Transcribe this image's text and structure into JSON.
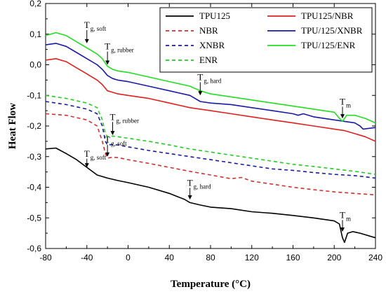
{
  "chart_data": {
    "type": "line",
    "xlabel": "Temperature (°C)",
    "ylabel": "Heat Flow",
    "xlim": [
      -80,
      240
    ],
    "ylim": [
      -0.6,
      0.2
    ],
    "x_ticks": [
      -80,
      -40,
      0,
      40,
      80,
      120,
      160,
      200,
      240
    ],
    "y_ticks": [
      0.2,
      0.1,
      0.0,
      -0.1,
      -0.2,
      -0.3,
      -0.4,
      -0.5,
      -0.6
    ],
    "y_tick_labels": [
      "0,2",
      "0,1",
      "0,0",
      "-0,1",
      "-0,2",
      "-0,3",
      "-0,4",
      "-0,5",
      "-0,6"
    ],
    "x_tick_labels": [
      "-80",
      "-40",
      "0",
      "40",
      "80",
      "120",
      "160",
      "200",
      "240"
    ],
    "grid": false,
    "legend": "top-right",
    "series": [
      {
        "name": "TPU125",
        "color": "#000000",
        "dash": "solid",
        "x": [
          -80,
          -70,
          -60,
          -50,
          -40,
          -30,
          -20,
          -10,
          0,
          20,
          40,
          55,
          60,
          70,
          80,
          100,
          120,
          140,
          160,
          180,
          200,
          205,
          208,
          210,
          213,
          218,
          225,
          240
        ],
        "y": [
          -0.275,
          -0.272,
          -0.29,
          -0.31,
          -0.335,
          -0.36,
          -0.37,
          -0.378,
          -0.385,
          -0.4,
          -0.42,
          -0.44,
          -0.45,
          -0.458,
          -0.465,
          -0.47,
          -0.48,
          -0.485,
          -0.492,
          -0.5,
          -0.51,
          -0.52,
          -0.565,
          -0.58,
          -0.55,
          -0.545,
          -0.55,
          -0.565
        ]
      },
      {
        "name": "NBR",
        "color": "#d03030",
        "dash": "dashed",
        "x": [
          -80,
          -60,
          -40,
          -30,
          -25,
          -22,
          -20,
          -15,
          -10,
          0,
          20,
          40,
          60,
          80,
          100,
          110,
          120,
          140,
          160,
          180,
          200,
          220,
          240
        ],
        "y": [
          -0.16,
          -0.165,
          -0.18,
          -0.2,
          -0.25,
          -0.29,
          -0.305,
          -0.302,
          -0.303,
          -0.31,
          -0.322,
          -0.335,
          -0.348,
          -0.36,
          -0.372,
          -0.368,
          -0.38,
          -0.39,
          -0.4,
          -0.408,
          -0.415,
          -0.42,
          -0.425
        ]
      },
      {
        "name": "XNBR",
        "color": "#1a1a9c",
        "dash": "dashed",
        "x": [
          -80,
          -60,
          -40,
          -30,
          -25,
          -22,
          -20,
          -15,
          -10,
          0,
          20,
          40,
          60,
          80,
          100,
          120,
          140,
          160,
          180,
          200,
          220,
          240
        ],
        "y": [
          -0.12,
          -0.13,
          -0.145,
          -0.16,
          -0.2,
          -0.25,
          -0.262,
          -0.26,
          -0.262,
          -0.268,
          -0.28,
          -0.29,
          -0.3,
          -0.31,
          -0.32,
          -0.33,
          -0.34,
          -0.345,
          -0.352,
          -0.358,
          -0.362,
          -0.37
        ]
      },
      {
        "name": "ENR",
        "color": "#22cc22",
        "dash": "dashed",
        "x": [
          -80,
          -60,
          -40,
          -30,
          -25,
          -22,
          -20,
          -15,
          -10,
          0,
          20,
          40,
          60,
          80,
          100,
          120,
          140,
          160,
          180,
          200,
          220,
          240
        ],
        "y": [
          -0.1,
          -0.11,
          -0.125,
          -0.14,
          -0.18,
          -0.225,
          -0.235,
          -0.233,
          -0.235,
          -0.24,
          -0.25,
          -0.262,
          -0.275,
          -0.285,
          -0.295,
          -0.305,
          -0.315,
          -0.325,
          -0.332,
          -0.34,
          -0.348,
          -0.358
        ]
      },
      {
        "name": "TPU125/NBR",
        "color": "#e02020",
        "dash": "solid",
        "x": [
          -80,
          -70,
          -60,
          -50,
          -40,
          -30,
          -25,
          -20,
          -15,
          -10,
          0,
          20,
          40,
          60,
          70,
          80,
          100,
          120,
          140,
          160,
          180,
          200,
          210,
          220,
          230,
          240
        ],
        "y": [
          0.015,
          0.02,
          0.01,
          -0.01,
          -0.03,
          -0.05,
          -0.065,
          -0.085,
          -0.09,
          -0.095,
          -0.1,
          -0.11,
          -0.125,
          -0.14,
          -0.145,
          -0.15,
          -0.16,
          -0.17,
          -0.18,
          -0.19,
          -0.2,
          -0.21,
          -0.215,
          -0.225,
          -0.235,
          -0.25
        ]
      },
      {
        "name": "TPU/125/XNBR",
        "color": "#1a1aa6",
        "dash": "solid",
        "x": [
          -80,
          -70,
          -60,
          -50,
          -40,
          -30,
          -25,
          -20,
          -15,
          -10,
          0,
          20,
          40,
          60,
          70,
          80,
          100,
          120,
          140,
          160,
          165,
          170,
          180,
          200,
          220,
          225,
          228,
          240
        ],
        "y": [
          0.065,
          0.07,
          0.06,
          0.04,
          0.02,
          0.0,
          -0.015,
          -0.035,
          -0.045,
          -0.05,
          -0.055,
          -0.07,
          -0.085,
          -0.1,
          -0.12,
          -0.125,
          -0.13,
          -0.14,
          -0.15,
          -0.16,
          -0.165,
          -0.16,
          -0.17,
          -0.18,
          -0.19,
          -0.2,
          -0.21,
          -0.205
        ]
      },
      {
        "name": "TPU/125/ENR",
        "color": "#22dd22",
        "dash": "solid",
        "x": [
          -80,
          -70,
          -60,
          -50,
          -40,
          -30,
          -25,
          -20,
          -15,
          -10,
          0,
          20,
          40,
          60,
          70,
          80,
          100,
          120,
          140,
          160,
          180,
          200,
          205,
          208,
          212,
          220,
          230,
          240
        ],
        "y": [
          0.095,
          0.105,
          0.095,
          0.075,
          0.055,
          0.035,
          0.02,
          -0.005,
          -0.015,
          -0.02,
          -0.025,
          -0.04,
          -0.055,
          -0.07,
          -0.085,
          -0.095,
          -0.105,
          -0.115,
          -0.125,
          -0.135,
          -0.145,
          -0.155,
          -0.175,
          -0.185,
          -0.165,
          -0.165,
          -0.175,
          -0.19
        ]
      }
    ],
    "annotations": [
      {
        "main": "T",
        "sub": "g, soft",
        "x": -40,
        "y": 0.12,
        "arrow_to": 0.07
      },
      {
        "main": "T",
        "sub": "g, rubber",
        "x": -20,
        "y": 0.05,
        "arrow_to": 0.0
      },
      {
        "main": "T",
        "sub": "g, hard",
        "x": 70,
        "y": -0.05,
        "arrow_to": -0.1
      },
      {
        "main": "T",
        "sub": "m",
        "x": 208,
        "y": -0.13,
        "arrow_to": -0.175
      },
      {
        "main": "T",
        "sub": "g, rubber",
        "x": -15,
        "y": -0.18,
        "arrow_to": -0.23
      },
      {
        "main": "T",
        "sub": "g, soft",
        "x": -40,
        "y": -0.3,
        "arrow_to": -0.335
      },
      {
        "main": "T",
        "sub": "g, soft",
        "x": -20,
        "y": -0.255,
        "arrow_to": -0.3
      },
      {
        "main": "T",
        "sub": "g, hard",
        "x": 60,
        "y": -0.395,
        "arrow_to": -0.44
      },
      {
        "main": "T",
        "sub": "m",
        "x": 208,
        "y": -0.5,
        "arrow_to": -0.545
      }
    ]
  }
}
